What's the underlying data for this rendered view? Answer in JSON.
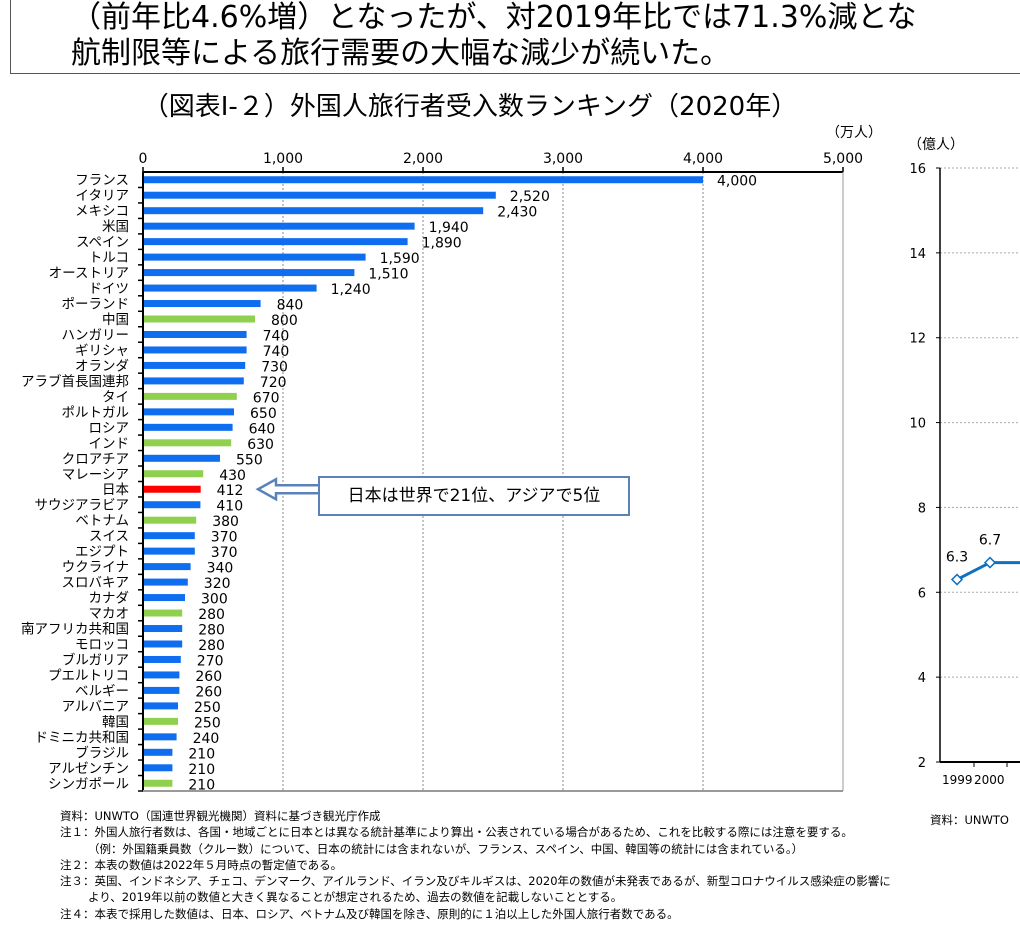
{
  "intro_text": {
    "line1": "（前年比4.6%増）となったが、対2019年比では71.3%減とな",
    "line2": "航制限等による旅行需要の大幅な減少が続いた。"
  },
  "chart_data": [
    {
      "type": "bar",
      "orientation": "horizontal",
      "title": "（図表Ⅰ-２）外国人旅行者受入数ランキング（2020年）",
      "unit": "（万人）",
      "xlim": [
        0,
        5000
      ],
      "xticks": [
        "0",
        "1,000",
        "2,000",
        "3,000",
        "4,000",
        "5,000"
      ],
      "grid": true,
      "colors": {
        "default": "#0f6ef0",
        "asia": "#8fd14f",
        "japan": "#ff0000"
      },
      "categories": [
        "フランス",
        "イタリア",
        "メキシコ",
        "米国",
        "スペイン",
        "トルコ",
        "オーストリア",
        "ドイツ",
        "ポーランド",
        "中国",
        "ハンガリー",
        "ギリシャ",
        "オランダ",
        "アラブ首長国連邦",
        "タイ",
        "ポルトガル",
        "ロシア",
        "インド",
        "クロアチア",
        "マレーシア",
        "日本",
        "サウジアラビア",
        "ベトナム",
        "スイス",
        "エジプト",
        "ウクライナ",
        "スロバキア",
        "カナダ",
        "マカオ",
        "南アフリカ共和国",
        "モロッコ",
        "ブルガリア",
        "プエルトリコ",
        "ベルギー",
        "アルバニア",
        "韓国",
        "ドミニカ共和国",
        "ブラジル",
        "アルゼンチン",
        "シンガポール"
      ],
      "values": [
        4000,
        2520,
        2430,
        1940,
        1890,
        1590,
        1510,
        1240,
        840,
        800,
        740,
        740,
        730,
        720,
        670,
        650,
        640,
        630,
        550,
        430,
        412,
        410,
        380,
        370,
        370,
        340,
        320,
        300,
        280,
        280,
        280,
        270,
        260,
        260,
        250,
        250,
        240,
        210,
        210,
        210
      ],
      "data_labels": [
        "4,000",
        "2,520",
        "2,430",
        "1,940",
        "1,890",
        "1,590",
        "1,510",
        "1,240",
        "840",
        "800",
        "740",
        "740",
        "730",
        "720",
        "670",
        "650",
        "640",
        "630",
        "550",
        "430",
        "412",
        "410",
        "380",
        "370",
        "370",
        "340",
        "320",
        "300",
        "280",
        "280",
        "280",
        "270",
        "260",
        "260",
        "250",
        "250",
        "240",
        "210",
        "210",
        "210"
      ],
      "groups": [
        "default",
        "default",
        "default",
        "default",
        "default",
        "default",
        "default",
        "default",
        "default",
        "asia",
        "default",
        "default",
        "default",
        "default",
        "asia",
        "default",
        "default",
        "asia",
        "default",
        "asia",
        "japan",
        "default",
        "asia",
        "default",
        "default",
        "default",
        "default",
        "default",
        "asia",
        "default",
        "default",
        "default",
        "default",
        "default",
        "default",
        "asia",
        "default",
        "default",
        "default",
        "asia"
      ],
      "annotation": "日本は世界で21位、アジアで5位"
    },
    {
      "type": "line",
      "unit": "（億人）",
      "ylim": [
        2,
        16
      ],
      "yticks": [
        "2",
        "4",
        "6",
        "8",
        "10",
        "12",
        "14",
        "16"
      ],
      "grid": true,
      "color": "#1070c0",
      "x": [
        "1999",
        "2000"
      ],
      "values": [
        6.3,
        6.7
      ],
      "data_labels": [
        "6.3",
        "6.7"
      ]
    }
  ],
  "notes": {
    "source": "資料：UNWTO（国連世界観光機関）資料に基づき観光庁作成",
    "note1": "注１：外国人旅行者数は、各国・地域ごとに日本とは異なる統計基準により算出・公表されている場合があるため、これを比較する際には注意を要する。",
    "note1_example": "（例：外国籍乗員数（クルー数）について、日本の統計には含まれないが、フランス、スペイン、中国、韓国等の統計には含まれている。）",
    "note2": "注２：本表の数値は2022年５月時点の暫定値である。",
    "note3a": "注３：英国、インドネシア、チェコ、デンマーク、アイルランド、イラン及びキルギスは、2020年の数値が未発表であるが、新型コロナウイルス感染症の影響に",
    "note3b": "より、2019年以前の数値と大きく異なることが想定されるため、過去の数値を記載しないこととする。",
    "note4": "注４：本表で採用した数値は、日本、ロシア、ベトナム及び韓国を除き、原則的に１泊以上した外国人旅行者数である。",
    "source_right": "資料：UNWTO"
  }
}
